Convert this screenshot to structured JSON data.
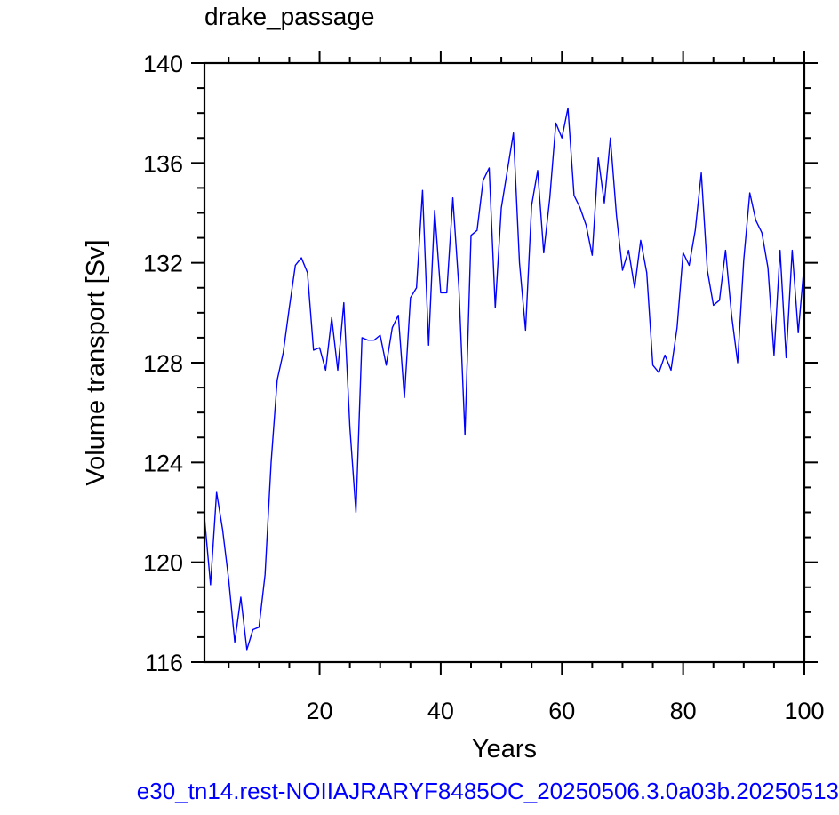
{
  "chart_data": {
    "type": "line",
    "title": "drake_passage",
    "xlabel": "Years",
    "ylabel": "Volume transport [Sv]",
    "xlim": [
      1,
      100
    ],
    "ylim": [
      116,
      140
    ],
    "xticks": [
      20,
      40,
      60,
      80,
      100
    ],
    "yticks": [
      116,
      120,
      124,
      128,
      132,
      136,
      140
    ],
    "grid": false,
    "legend": "none",
    "series": [
      {
        "color": "#0000ff",
        "x": [
          1,
          2,
          3,
          4,
          5,
          6,
          7,
          8,
          9,
          10,
          11,
          12,
          13,
          14,
          15,
          16,
          17,
          18,
          19,
          20,
          21,
          22,
          23,
          24,
          25,
          26,
          27,
          28,
          29,
          30,
          31,
          32,
          33,
          34,
          35,
          36,
          37,
          38,
          39,
          40,
          41,
          42,
          43,
          44,
          45,
          46,
          47,
          48,
          49,
          50,
          51,
          52,
          53,
          54,
          55,
          56,
          57,
          58,
          59,
          60,
          61,
          62,
          63,
          64,
          65,
          66,
          67,
          68,
          69,
          70,
          71,
          72,
          73,
          74,
          75,
          76,
          77,
          78,
          79,
          80,
          81,
          82,
          83,
          84,
          85,
          86,
          87,
          88,
          89,
          90,
          91,
          92,
          93,
          94,
          95,
          96,
          97,
          98,
          99,
          100
        ],
        "values": [
          121.8,
          119.1,
          122.8,
          121.3,
          119.3,
          116.8,
          118.6,
          116.5,
          117.3,
          117.4,
          119.5,
          124.0,
          127.3,
          128.4,
          130.2,
          131.9,
          132.2,
          131.6,
          128.5,
          128.6,
          127.7,
          129.8,
          127.7,
          130.4,
          125.4,
          122.0,
          129.0,
          128.9,
          128.9,
          129.1,
          127.9,
          129.4,
          129.9,
          126.6,
          130.6,
          131.0,
          134.9,
          128.7,
          134.1,
          130.8,
          130.8,
          134.6,
          131.0,
          125.1,
          133.1,
          133.3,
          135.3,
          135.8,
          130.2,
          134.2,
          135.7,
          137.2,
          132.0,
          129.3,
          134.3,
          135.7,
          132.4,
          134.6,
          137.6,
          137.0,
          138.2,
          134.7,
          134.2,
          133.5,
          132.3,
          136.2,
          134.4,
          137.0,
          133.9,
          131.7,
          132.5,
          131.0,
          132.9,
          131.6,
          127.9,
          127.6,
          128.3,
          127.7,
          129.4,
          132.4,
          131.9,
          133.3,
          135.6,
          131.7,
          130.3,
          130.5,
          132.5,
          129.9,
          128.0,
          132.1,
          134.8,
          133.7,
          133.2,
          131.8,
          128.3,
          132.5,
          128.2,
          132.5,
          129.2,
          132.0
        ]
      }
    ]
  },
  "footer": {
    "caption": "e30_tn14.rest-NOIIAJRARYF8485OC_20250506.3.0a03b.20250513",
    "color": "#0000ff"
  }
}
